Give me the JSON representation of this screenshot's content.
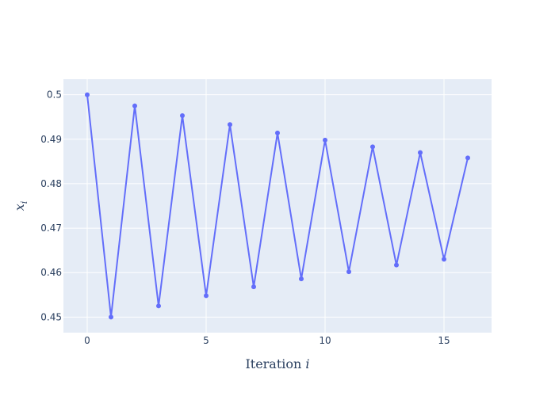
{
  "chart_data": {
    "type": "line",
    "title": "",
    "xlabel": "Iteration",
    "xlabel_var": "i",
    "ylabel_var": "x",
    "ylabel_sub": "i",
    "xlim": [
      -1,
      17
    ],
    "ylim": [
      0.4465,
      0.5035
    ],
    "x_ticks": [
      0,
      5,
      10,
      15
    ],
    "x_tick_labels": [
      "0",
      "5",
      "10",
      "15"
    ],
    "y_ticks": [
      0.45,
      0.46,
      0.47,
      0.48,
      0.49,
      0.5
    ],
    "y_tick_labels": [
      "0.45",
      "0.46",
      "0.47",
      "0.48",
      "0.49",
      "0.5"
    ],
    "grid": true,
    "plot_bg": "#e5ecf6",
    "grid_color": "#ffffff",
    "line_color": "#636efa",
    "series": [
      {
        "x": [
          0,
          1,
          2,
          3,
          4,
          5,
          6,
          7,
          8,
          9,
          10,
          11,
          12,
          13,
          14,
          15,
          16
        ],
        "values": [
          0.5,
          0.45,
          0.4975,
          0.4525,
          0.4953,
          0.4548,
          0.4933,
          0.4568,
          0.4914,
          0.4586,
          0.4898,
          0.4602,
          0.4883,
          0.4617,
          0.487,
          0.463,
          0.4858
        ]
      }
    ]
  }
}
